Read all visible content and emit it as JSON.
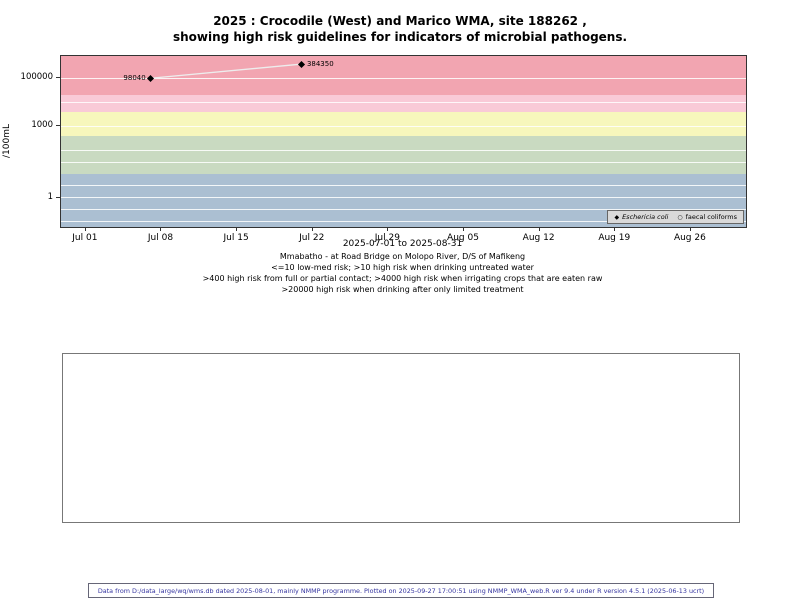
{
  "title": {
    "line1": "2025 : Crocodile (West) and Marico WMA, site 188262 ,",
    "line2": "showing high risk guidelines for indicators of microbial pathogens."
  },
  "chart_data": {
    "type": "scatter",
    "title": "2025 : Crocodile (West) and Marico WMA, site 188262 , showing high risk guidelines for indicators of microbial pathogens.",
    "y_axis": {
      "label": "/100mL",
      "scale": "log10",
      "log_range": [
        -1.21,
        5.92
      ],
      "ticks": [
        {
          "value": 100000,
          "label": "100000"
        },
        {
          "value": 1000,
          "label": "1000"
        },
        {
          "value": 1,
          "label": "1"
        }
      ]
    },
    "x_axis": {
      "label": "2025-07-01 to 2025-08-31",
      "day_range": [
        -2.3,
        61.1
      ],
      "ticks": [
        {
          "day": 0,
          "label": "Jul 01"
        },
        {
          "day": 7,
          "label": "Jul 08"
        },
        {
          "day": 14,
          "label": "Jul 15"
        },
        {
          "day": 21,
          "label": "Jul 22"
        },
        {
          "day": 28,
          "label": "Jul 29"
        },
        {
          "day": 35,
          "label": "Aug 05"
        },
        {
          "day": 42,
          "label": "Aug 12"
        },
        {
          "day": 49,
          "label": "Aug 19"
        },
        {
          "day": 56,
          "label": "Aug 26"
        }
      ]
    },
    "bands": [
      {
        "min": 20000,
        "max": null,
        "color": "#f2a5b1",
        "meaning": ">20000 high risk when drinking after only limited treatment"
      },
      {
        "min": 4000,
        "max": 20000,
        "color": "#f9cad7",
        "meaning": ">4000 high risk when irrigating crops that are eaten raw"
      },
      {
        "min": 400,
        "max": 4000,
        "color": "#f7f7bc",
        "meaning": ">400 high risk from full or partial contact"
      },
      {
        "min": 10,
        "max": 400,
        "color": "#c9dac1",
        "meaning": ">10 high risk when drinking untreated water"
      },
      {
        "min": null,
        "max": 10,
        "color": "#abbfd2",
        "meaning": "<=10 low-med risk"
      }
    ],
    "gridline_values": [
      100000,
      10000,
      1000,
      100,
      31.6,
      3.16,
      1,
      0.316,
      0.1
    ],
    "line_color": "#ededed",
    "series": [
      {
        "name": "Eschericia coli",
        "marker": "filled-diamond",
        "points": [
          {
            "day": 6,
            "value": 98040,
            "label": "98040",
            "label_side": "left"
          },
          {
            "day": 20,
            "value": 384350,
            "label": "384350",
            "label_side": "right"
          }
        ]
      },
      {
        "name": "faecal coliforms",
        "marker": "open-circle",
        "points": []
      }
    ]
  },
  "legend": {
    "items": [
      {
        "symbol": "filled-diamond",
        "label": "Eschericia coli"
      },
      {
        "symbol": "open-circle",
        "label": "faecal coliforms"
      }
    ]
  },
  "caption": {
    "line1": "Mmabatho - at Road Bridge on Molopo River, D/S of Mafikeng",
    "line2": "<=10 low-med risk; >10 high risk when drinking untreated water",
    "line3": ">400 high risk from full or partial contact; >4000 high risk when irrigating crops that are eaten raw",
    "line4": ">20000 high risk when drinking after only limited treatment"
  },
  "footer": "Data from D:/data_large/wq/wms.db dated 2025-08-01, mainly NMMP programme. Plotted on 2025-09-27 17:00:51 using NMMP_WMA_web.R ver 9.4 under R version 4.5.1 (2025-06-13 ucrt)"
}
